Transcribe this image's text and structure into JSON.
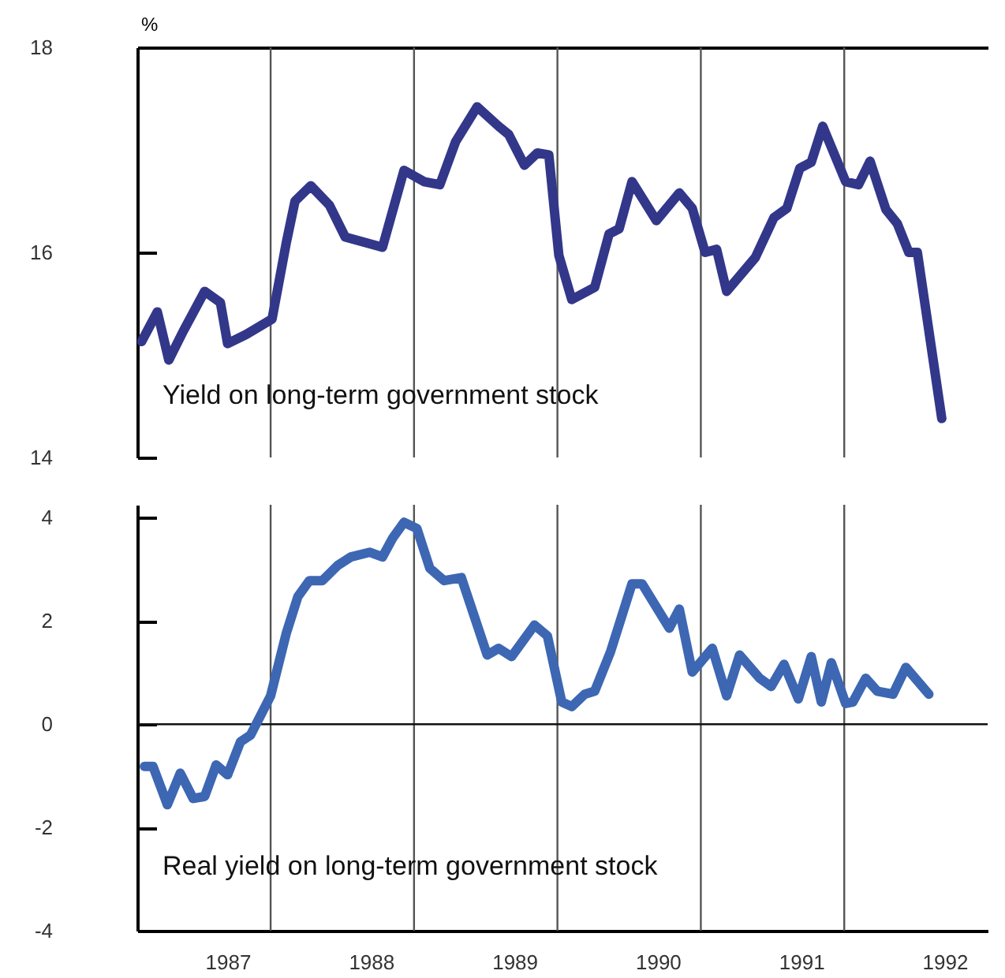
{
  "chart_data": [
    {
      "type": "line",
      "ylabel": "%",
      "xlim": [
        1986.37,
        1992.3
      ],
      "ylim": [
        14,
        18
      ],
      "yticks": [
        14,
        16,
        18
      ],
      "xticks": [
        1987,
        1988,
        1989,
        1990,
        1991,
        1992
      ],
      "tick_labels": "y",
      "ref_lines": [
        {
          "axis": "x",
          "value": 1987.3,
          "color": "#555555"
        },
        {
          "axis": "x",
          "value": 1988.3,
          "color": "#555555"
        },
        {
          "axis": "x",
          "value": 1989.3,
          "color": "#555555"
        },
        {
          "axis": "x",
          "value": 1990.3,
          "color": "#555555"
        },
        {
          "axis": "x",
          "value": 1991.3,
          "color": "#555555"
        }
      ],
      "series": [
        {
          "name": "Yield on long-term government stock",
          "color": "#33378a",
          "x": [
            1986.4,
            1986.51,
            1986.59,
            1986.69,
            1986.84,
            1986.95,
            1987.0,
            1987.13,
            1987.31,
            1987.41,
            1987.47,
            1987.58,
            1987.71,
            1987.82,
            1988.08,
            1988.23,
            1988.37,
            1988.48,
            1988.59,
            1988.74,
            1988.89,
            1988.96,
            1989.07,
            1989.16,
            1989.24,
            1989.31,
            1989.4,
            1989.56,
            1989.66,
            1989.73,
            1989.82,
            1989.99,
            1990.15,
            1990.24,
            1990.33,
            1990.41,
            1990.48,
            1990.68,
            1990.81,
            1990.9,
            1990.99,
            1991.07,
            1991.15,
            1991.31,
            1991.4,
            1991.48,
            1991.59,
            1991.67,
            1991.75,
            1991.81,
            1991.98
          ],
          "values": [
            15.13,
            15.42,
            14.95,
            15.23,
            15.62,
            15.51,
            15.11,
            15.2,
            15.35,
            16.1,
            16.5,
            16.65,
            16.46,
            16.15,
            16.05,
            16.8,
            16.69,
            16.66,
            17.08,
            17.42,
            17.23,
            17.15,
            16.85,
            16.97,
            16.95,
            15.97,
            15.54,
            15.66,
            16.18,
            16.23,
            16.69,
            16.31,
            16.58,
            16.43,
            16.0,
            16.03,
            15.62,
            15.95,
            16.34,
            16.43,
            16.82,
            16.88,
            17.23,
            16.69,
            16.66,
            16.89,
            16.42,
            16.28,
            16.0,
            16.0,
            14.38
          ]
        }
      ]
    },
    {
      "type": "line",
      "xlim": [
        1986.37,
        1992.3
      ],
      "ylim": [
        -4,
        4.25
      ],
      "yticks": [
        -4,
        -2,
        0,
        2,
        4
      ],
      "xticks": [
        1987,
        1988,
        1989,
        1990,
        1991,
        1992
      ],
      "ref_lines": [
        {
          "axis": "y",
          "value": 0,
          "color": "#111111"
        },
        {
          "axis": "x",
          "value": 1987.3,
          "color": "#555555"
        },
        {
          "axis": "x",
          "value": 1988.3,
          "color": "#555555"
        },
        {
          "axis": "x",
          "value": 1989.3,
          "color": "#555555"
        },
        {
          "axis": "x",
          "value": 1990.3,
          "color": "#555555"
        },
        {
          "axis": "x",
          "value": 1991.3,
          "color": "#555555"
        }
      ],
      "series": [
        {
          "name": "Real yield on long-term government stock",
          "color": "#3d67b3",
          "x": [
            1986.42,
            1986.48,
            1986.58,
            1986.67,
            1986.76,
            1986.84,
            1986.92,
            1987.0,
            1987.09,
            1987.16,
            1987.3,
            1987.41,
            1987.49,
            1987.57,
            1987.66,
            1987.77,
            1987.86,
            1987.99,
            1988.08,
            1988.15,
            1988.23,
            1988.32,
            1988.41,
            1988.51,
            1988.63,
            1988.81,
            1988.89,
            1988.98,
            1989.14,
            1989.23,
            1989.33,
            1989.4,
            1989.49,
            1989.56,
            1989.67,
            1989.82,
            1989.89,
            1990.08,
            1990.15,
            1990.24,
            1990.38,
            1990.48,
            1990.57,
            1990.71,
            1990.79,
            1990.88,
            1990.98,
            1991.07,
            1991.14,
            1991.21,
            1991.31,
            1991.36,
            1991.45,
            1991.53,
            1991.64,
            1991.73,
            1991.89
          ],
          "values": [
            -0.82,
            -0.82,
            -1.56,
            -0.95,
            -1.44,
            -1.4,
            -0.79,
            -0.98,
            -0.34,
            -0.21,
            0.55,
            1.77,
            2.47,
            2.78,
            2.78,
            3.08,
            3.24,
            3.33,
            3.24,
            3.6,
            3.91,
            3.79,
            3.02,
            2.78,
            2.84,
            1.34,
            1.47,
            1.31,
            1.92,
            1.71,
            0.43,
            0.34,
            0.58,
            0.64,
            1.4,
            2.72,
            2.72,
            1.86,
            2.23,
            1.01,
            1.47,
            0.55,
            1.34,
            0.89,
            0.73,
            1.16,
            0.49,
            1.31,
            0.43,
            1.19,
            0.4,
            0.43,
            0.89,
            0.64,
            0.58,
            1.1,
            0.58
          ]
        }
      ]
    }
  ]
}
